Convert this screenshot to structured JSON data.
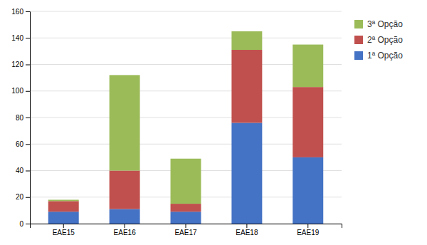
{
  "chart_data": {
    "type": "bar",
    "stacked": true,
    "categories": [
      "EAE15",
      "EAE16",
      "EAE17",
      "EAE18",
      "EAE19"
    ],
    "series": [
      {
        "name": "1ª Opção",
        "color": "#4472C4",
        "values": [
          9,
          11,
          9,
          76,
          50
        ]
      },
      {
        "name": "2ª Opção",
        "color": "#C0504D",
        "values": [
          8,
          29,
          6,
          55,
          53
        ]
      },
      {
        "name": "3ª Opção",
        "color": "#9BBB59",
        "values": [
          1,
          72,
          34,
          14,
          32
        ]
      }
    ],
    "ylim": [
      0,
      160
    ],
    "yticks": [
      0,
      20,
      40,
      60,
      80,
      100,
      120,
      140,
      160
    ],
    "grid": true,
    "legend": "right"
  }
}
